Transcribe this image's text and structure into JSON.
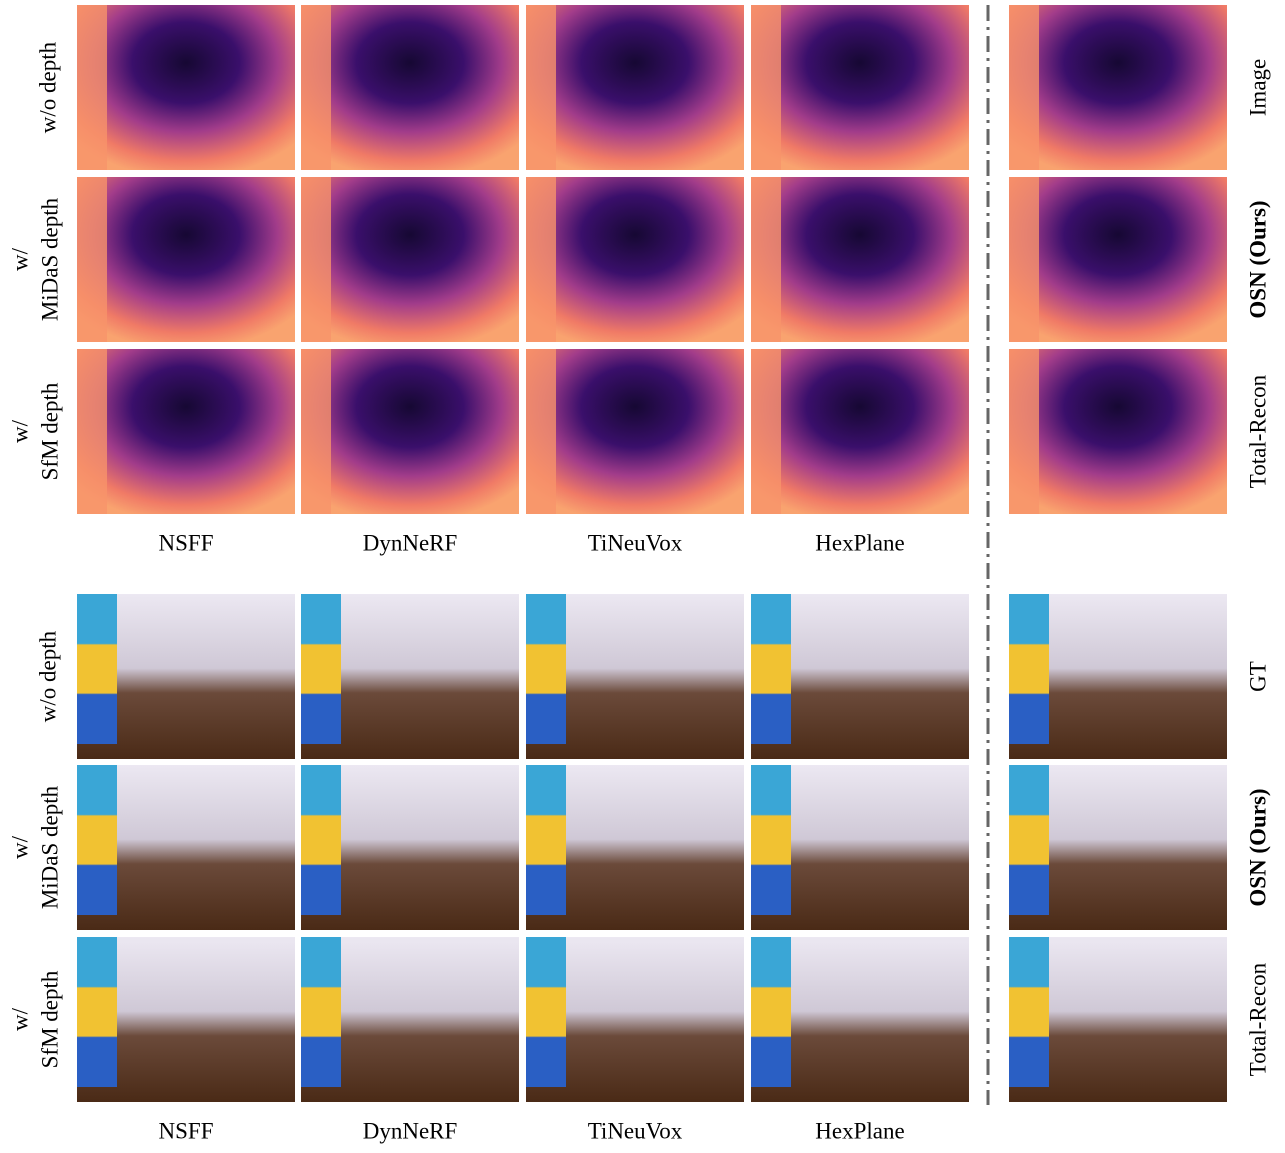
{
  "top": {
    "row_labels": [
      [
        "w/o depth"
      ],
      [
        "w/",
        "MiDaS depth"
      ],
      [
        "w/",
        "SfM depth"
      ]
    ],
    "column_labels": [
      "NSFF",
      "DynNeRF",
      "TiNeuVox",
      "HexPlane"
    ],
    "right_labels": [
      "Image",
      "OSN (Ours)",
      "Total-Recon"
    ]
  },
  "bottom": {
    "row_labels": [
      [
        "w/o depth"
      ],
      [
        "w/",
        "MiDaS depth"
      ],
      [
        "w/",
        "SfM depth"
      ]
    ],
    "column_labels": [
      "NSFF",
      "DynNeRF",
      "TiNeuVox",
      "HexPlane"
    ],
    "right_labels": [
      "GT",
      "OSN (Ours)",
      "Total-Recon"
    ]
  }
}
